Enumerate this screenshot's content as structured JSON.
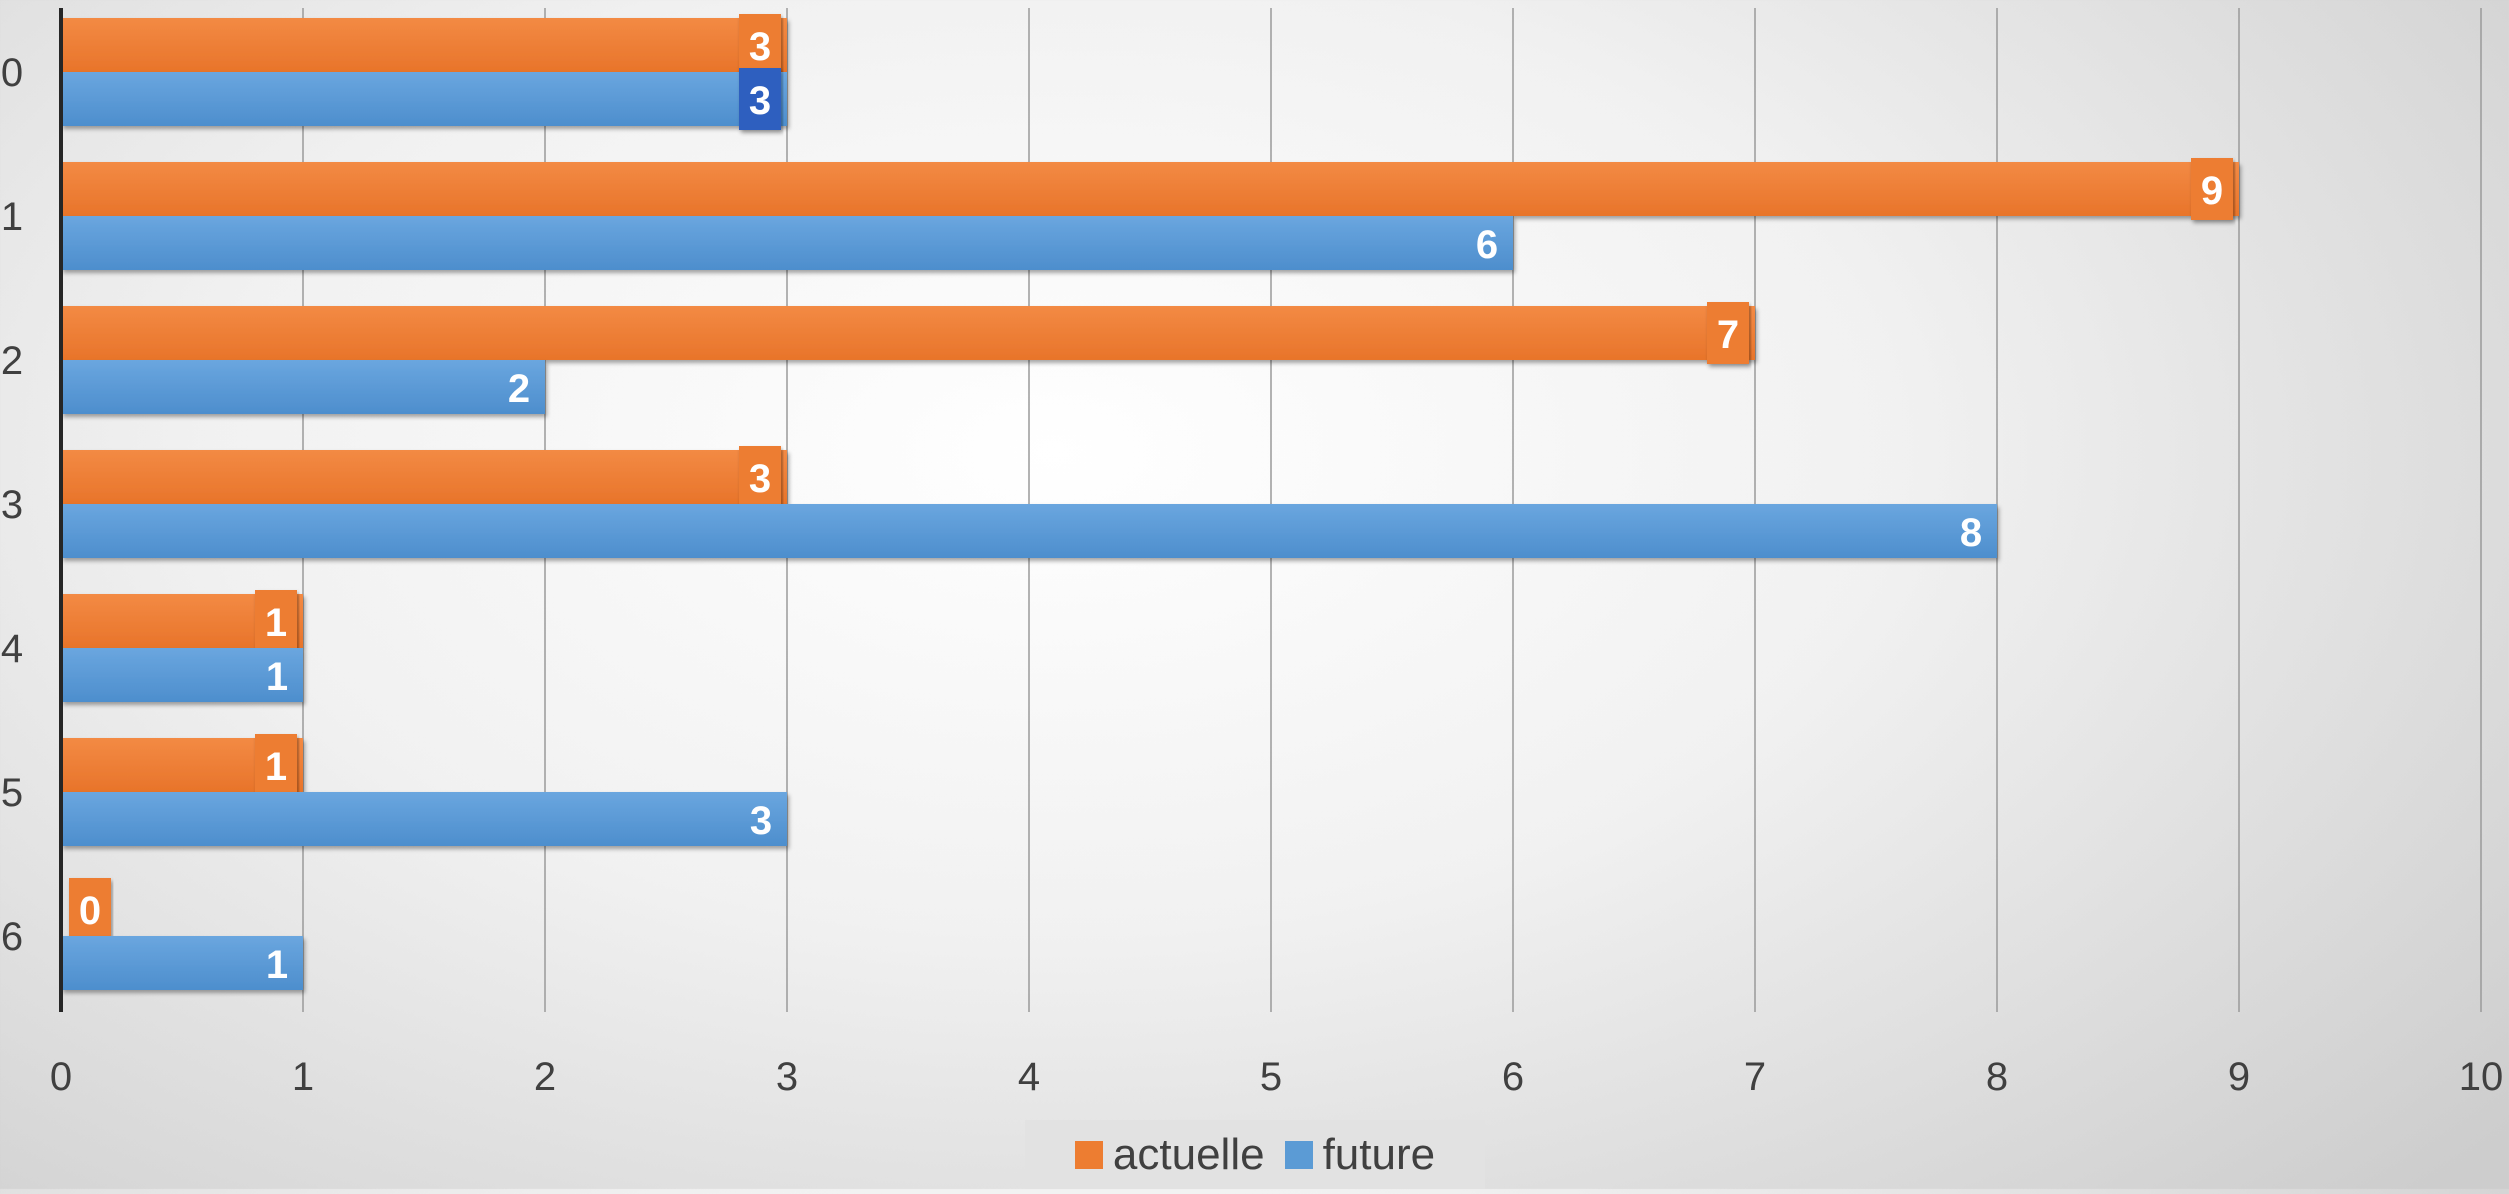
{
  "chart_data": {
    "type": "bar",
    "orientation": "horizontal",
    "categories": [
      "0",
      "1",
      "2",
      "3",
      "4",
      "5",
      "6"
    ],
    "series": [
      {
        "name": "actuelle",
        "values": [
          3,
          9,
          7,
          3,
          1,
          1,
          0
        ],
        "color": "#ED7D31"
      },
      {
        "name": "future",
        "values": [
          3,
          6,
          2,
          8,
          1,
          3,
          1
        ],
        "color": "#5B9BD5"
      }
    ],
    "x_ticks": [
      "0",
      "1",
      "2",
      "3",
      "4",
      "5",
      "6",
      "7",
      "8",
      "9",
      "10"
    ],
    "xlim": [
      0,
      10
    ],
    "title": "",
    "xlabel": "",
    "ylabel": "",
    "grid": "vertical",
    "legend_position": "bottom",
    "data_labels": true,
    "highlighted_label_color": "#2F5FBF"
  }
}
